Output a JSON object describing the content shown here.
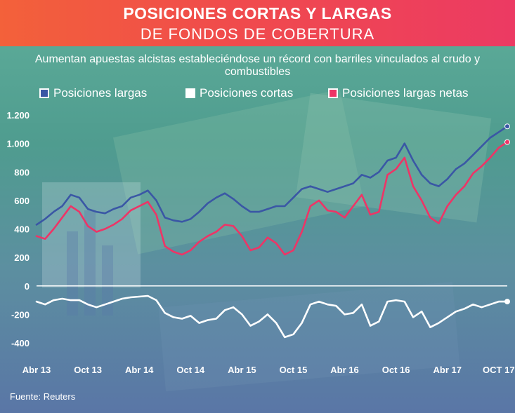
{
  "header": {
    "title_line1": "POSICIONES CORTAS Y LARGAS",
    "title_line2": "DE FONDOS DE COBERTURA",
    "subtitle": "Aumentan apuestas alcistas estableciéndose un récord con barriles vinculados al crudo y combustibles"
  },
  "legend": [
    {
      "label": "Posiciones largas",
      "color": "#3a57a5"
    },
    {
      "label": "Posiciones cortas",
      "color": "#ffffff"
    },
    {
      "label": "Posiciones largas netas",
      "color": "#ee3466"
    }
  ],
  "source": "Fuente: Reuters",
  "chart_data": {
    "type": "line",
    "title": "POSICIONES CORTAS Y LARGAS DE FONDOS DE COBERTURA",
    "subtitle": "Aumentan apuestas alcistas estableciéndose un récord con barriles vinculados al crudo y combustibles",
    "xlabel": "",
    "ylabel": "",
    "ylim": [
      -450,
      1250
    ],
    "y_ticks": [
      -400,
      -200,
      0,
      200,
      400,
      600,
      800,
      "1.000",
      "1.200"
    ],
    "x_tick_labels": [
      "Abr 13",
      "Oct 13",
      "Abr 14",
      "Oct 14",
      "Abr 15",
      "Oct 15",
      "Abr 16",
      "Oct 16",
      "Abr 17",
      "OCT 17"
    ],
    "x": [
      0,
      1,
      2,
      3,
      4,
      5,
      6,
      7,
      8,
      9,
      10,
      11,
      12,
      13,
      14,
      15,
      16,
      17,
      18,
      19,
      20,
      21,
      22,
      23,
      24,
      25,
      26,
      27,
      28,
      29,
      30,
      31,
      32,
      33,
      34,
      35,
      36,
      37,
      38,
      39,
      40,
      41,
      42,
      43,
      44,
      45,
      46,
      47,
      48,
      49,
      50,
      51,
      52,
      53,
      54,
      55
    ],
    "x_unit": "months since Apr 2013",
    "series": [
      {
        "name": "Posiciones largas",
        "color": "#3a57a5",
        "values": [
          430,
          470,
          520,
          560,
          640,
          620,
          540,
          520,
          510,
          540,
          560,
          620,
          640,
          670,
          600,
          480,
          460,
          450,
          470,
          520,
          580,
          620,
          650,
          610,
          560,
          520,
          520,
          540,
          560,
          560,
          620,
          680,
          700,
          680,
          660,
          680,
          700,
          720,
          780,
          760,
          800,
          880,
          900,
          1000,
          880,
          780,
          720,
          700,
          750,
          820,
          860,
          920,
          980,
          1040,
          1080,
          1120
        ]
      },
      {
        "name": "Posiciones cortas",
        "color": "#ffffff",
        "values": [
          -110,
          -130,
          -100,
          -90,
          -100,
          -100,
          -130,
          -150,
          -130,
          -110,
          -90,
          -80,
          -75,
          -70,
          -100,
          -190,
          -220,
          -230,
          -210,
          -260,
          -240,
          -230,
          -170,
          -150,
          -200,
          -280,
          -250,
          -200,
          -260,
          -360,
          -340,
          -260,
          -130,
          -110,
          -130,
          -140,
          -200,
          -190,
          -130,
          -280,
          -250,
          -110,
          -100,
          -110,
          -220,
          -180,
          -290,
          -260,
          -220,
          -180,
          -160,
          -130,
          -150,
          -130,
          -110,
          -110
        ]
      },
      {
        "name": "Posiciones largas netas",
        "color": "#ee3466",
        "values": [
          350,
          330,
          400,
          480,
          560,
          520,
          420,
          380,
          400,
          430,
          470,
          530,
          560,
          590,
          500,
          280,
          240,
          220,
          250,
          310,
          350,
          380,
          430,
          420,
          350,
          250,
          270,
          340,
          300,
          220,
          250,
          380,
          560,
          600,
          530,
          520,
          480,
          560,
          640,
          500,
          520,
          780,
          820,
          900,
          700,
          600,
          480,
          440,
          560,
          640,
          700,
          790,
          840,
          900,
          970,
          1010
        ]
      }
    ]
  }
}
